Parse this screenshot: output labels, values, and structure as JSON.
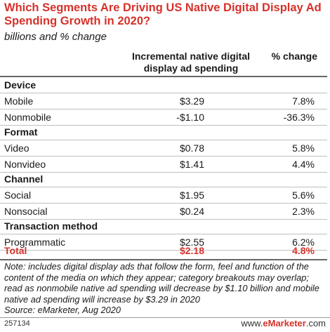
{
  "header": {
    "title": "Which Segments Are Driving US Native Digital Display Ad Spending Growth in 2020?",
    "subtitle": "billions and % change"
  },
  "columns": {
    "spending": "Incremental native digital display ad spending",
    "change": "% change"
  },
  "sections": {
    "device": {
      "label": "Device",
      "rows": [
        {
          "label": "Mobile",
          "spending": "$3.29",
          "change": "7.8%"
        },
        {
          "label": "Nonmobile",
          "spending": "-$1.10",
          "change": "-36.3%"
        }
      ]
    },
    "format": {
      "label": "Format",
      "rows": [
        {
          "label": "Video",
          "spending": "$0.78",
          "change": "5.8%"
        },
        {
          "label": "Nonvideo",
          "spending": "$1.41",
          "change": "4.4%"
        }
      ]
    },
    "channel": {
      "label": "Channel",
      "rows": [
        {
          "label": "Social",
          "spending": "$1.95",
          "change": "5.6%"
        },
        {
          "label": "Nonsocial",
          "spending": "$0.24",
          "change": "2.3%"
        }
      ]
    },
    "transaction": {
      "label": "Transaction method",
      "rows": [
        {
          "label": "Programmatic",
          "spending": "$2.55",
          "change": "6.2%"
        }
      ]
    }
  },
  "total": {
    "label": "Total",
    "spending": "$2.18",
    "change": "4.8%"
  },
  "note": "Note: includes digital display ads that follow the form, feel and function of the content of the media on which they appear; category breakouts may overlap; read as nonmobile native ad spending will decrease by $1.10 billion and mobile native ad spending will increase by $3.29 in 2020",
  "source": "Source: eMarketer, Aug 2020",
  "footer": {
    "id": "257134",
    "brand_prefix": "www.",
    "brand_name": "eMarketer",
    "brand_suffix": ".com"
  }
}
